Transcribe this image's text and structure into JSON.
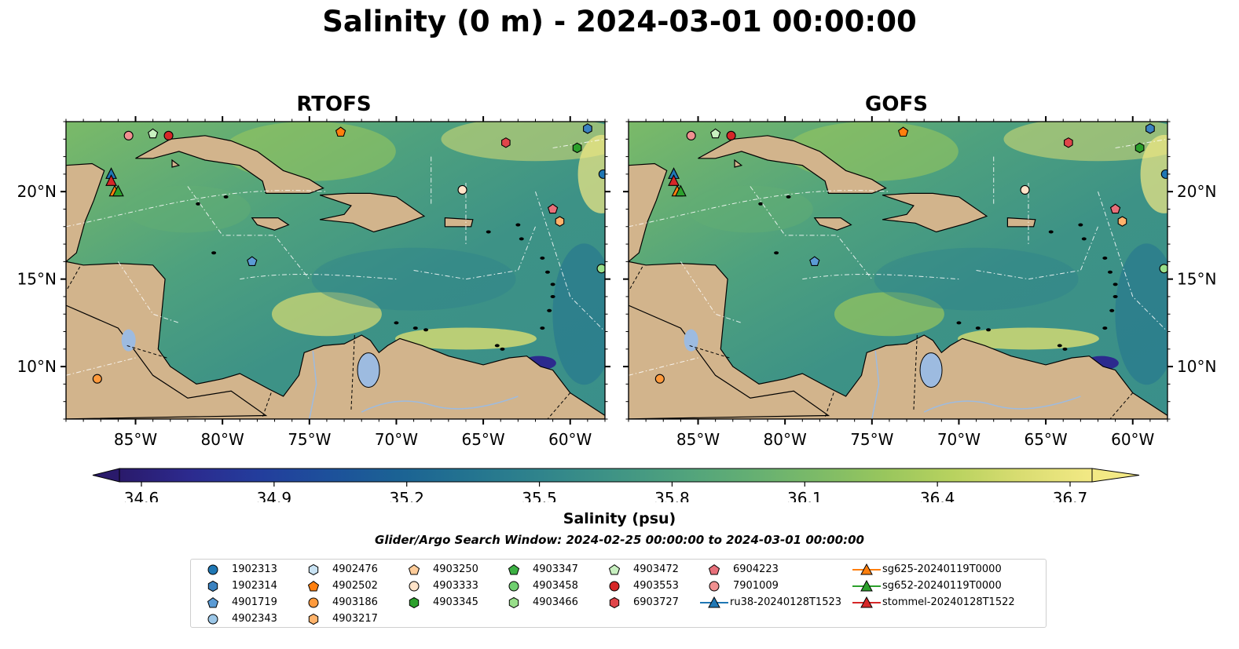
{
  "figure": {
    "title": "Salinity (0 m) - 2024-03-01 00:00:00",
    "panels": [
      {
        "title": "RTOFS"
      },
      {
        "title": "GOFS"
      }
    ],
    "lon_ticks": [
      "85°W",
      "80°W",
      "75°W",
      "70°W",
      "65°W",
      "60°W"
    ],
    "lat_ticks": [
      "20°N",
      "15°N",
      "10°N"
    ],
    "colorbar": {
      "label": "Salinity (psu)",
      "ticks": [
        "34.6",
        "34.9",
        "35.2",
        "35.5",
        "35.8",
        "36.1",
        "36.4",
        "36.7"
      ],
      "range": [
        34.6,
        36.7
      ],
      "extend": "both"
    },
    "search_window": "Glider/Argo Search Window: 2024-02-25 00:00:00 to 2024-03-01 00:00:00",
    "colors": {
      "land": "#d2b48c",
      "lakes": "#9dbbe0",
      "ocean_low": "#2a1a6b",
      "ocean_high": "#f3e985"
    }
  },
  "legend": {
    "items": [
      {
        "label": "1902313",
        "marker": "circle",
        "color": "#1f77b4"
      },
      {
        "label": "1902314",
        "marker": "hexagon",
        "color": "#3b82c0"
      },
      {
        "label": "4901719",
        "marker": "pentagon",
        "color": "#5b9bd5"
      },
      {
        "label": "4902343",
        "marker": "circle",
        "color": "#9cc7e8"
      },
      {
        "label": "4902476",
        "marker": "hexagon",
        "color": "#c9e3f4"
      },
      {
        "label": "4902502",
        "marker": "pentagon",
        "color": "#ff7f0e"
      },
      {
        "label": "4903186",
        "marker": "circle",
        "color": "#ff9a3c"
      },
      {
        "label": "4903217",
        "marker": "hexagon",
        "color": "#ffb36b"
      },
      {
        "label": "4903250",
        "marker": "pentagon",
        "color": "#ffcc99"
      },
      {
        "label": "4903333",
        "marker": "circle",
        "color": "#ffe3c8"
      },
      {
        "label": "4903345",
        "marker": "hexagon",
        "color": "#2ca02c"
      },
      {
        "label": "4903347",
        "marker": "pentagon",
        "color": "#3cb043"
      },
      {
        "label": "4903458",
        "marker": "circle",
        "color": "#6fcf6f"
      },
      {
        "label": "4903466",
        "marker": "hexagon",
        "color": "#98df8a"
      },
      {
        "label": "4903472",
        "marker": "pentagon",
        "color": "#c8f0c0"
      },
      {
        "label": "4903553",
        "marker": "circle",
        "color": "#d62728"
      },
      {
        "label": "6903727",
        "marker": "hexagon",
        "color": "#e0454a"
      },
      {
        "label": "6904223",
        "marker": "pentagon",
        "color": "#e8707a"
      },
      {
        "label": "7901009",
        "marker": "circle",
        "color": "#f09090"
      },
      {
        "label": "ru38-20240128T1523",
        "marker": "line-triangle",
        "color": "#1f77b4"
      },
      {
        "label": "sg625-20240119T0000",
        "marker": "line-triangle",
        "color": "#ff7f0e"
      },
      {
        "label": "sg652-20240119T0000",
        "marker": "line-triangle",
        "color": "#2ca02c"
      },
      {
        "label": "stommel-20240128T1522",
        "marker": "line-triangle",
        "color": "#d62728"
      }
    ]
  }
}
